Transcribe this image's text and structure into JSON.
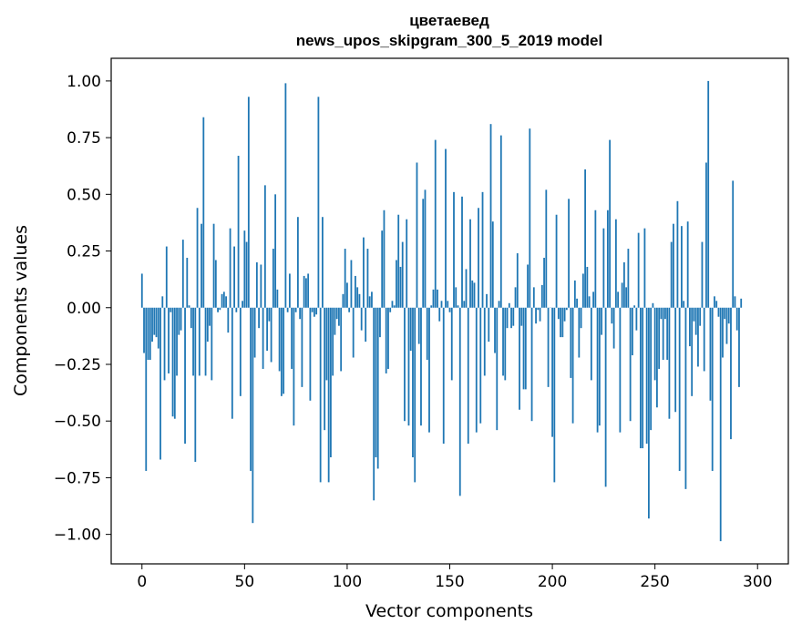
{
  "chart_data": {
    "type": "bar",
    "title": "цветаевед",
    "subtitle": "news_upos_skipgram_300_5_2019 model",
    "xlabel": "Vector components",
    "ylabel": "Components values",
    "xlim": [
      -15,
      315
    ],
    "ylim": [
      -1.13,
      1.1
    ],
    "xticks": [
      0,
      50,
      100,
      150,
      200,
      250,
      300
    ],
    "xtick_labels": [
      "0",
      "50",
      "100",
      "150",
      "200",
      "250",
      "300"
    ],
    "yticks": [
      1.0,
      0.75,
      0.5,
      0.25,
      0.0,
      -0.25,
      -0.5,
      -0.75,
      -1.0
    ],
    "ytick_labels": [
      "1.00",
      "0.75",
      "0.50",
      "0.25",
      "0.00",
      "−0.25",
      "−0.50",
      "−0.75",
      "−1.00"
    ],
    "grid": false,
    "legend": "none",
    "bar_color": "#1f77b4",
    "values": [
      0.15,
      -0.2,
      -0.72,
      -0.23,
      -0.23,
      -0.15,
      -0.12,
      -0.13,
      -0.18,
      -0.67,
      0.05,
      -0.32,
      0.27,
      -0.29,
      -0.02,
      -0.48,
      -0.49,
      -0.3,
      -0.12,
      -0.1,
      0.3,
      -0.6,
      0.22,
      0.01,
      -0.09,
      -0.3,
      -0.68,
      0.44,
      -0.3,
      0.37,
      0.84,
      -0.3,
      -0.15,
      -0.08,
      -0.32,
      0.37,
      0.21,
      -0.02,
      -0.01,
      0.06,
      0.07,
      0.05,
      -0.11,
      0.35,
      -0.49,
      0.27,
      -0.02,
      0.67,
      -0.39,
      0.03,
      0.34,
      0.29,
      0.93,
      -0.72,
      -0.95,
      -0.22,
      0.2,
      -0.09,
      0.19,
      -0.27,
      0.54,
      -0.19,
      -0.06,
      -0.24,
      0.26,
      0.5,
      0.08,
      -0.28,
      -0.39,
      -0.38,
      0.99,
      -0.02,
      0.15,
      -0.27,
      -0.52,
      -0.02,
      0.4,
      -0.05,
      -0.35,
      0.14,
      0.13,
      0.15,
      -0.41,
      -0.02,
      -0.04,
      -0.03,
      0.93,
      -0.77,
      0.4,
      -0.54,
      -0.32,
      -0.77,
      -0.66,
      -0.3,
      -0.12,
      -0.05,
      -0.08,
      -0.28,
      0.06,
      0.26,
      0.11,
      -0.02,
      0.21,
      -0.22,
      0.14,
      0.09,
      0.06,
      -0.1,
      0.31,
      -0.15,
      0.26,
      0.05,
      0.07,
      -0.85,
      -0.66,
      -0.71,
      -0.13,
      0.34,
      0.43,
      -0.29,
      -0.27,
      -0.02,
      0.03,
      0.01,
      0.21,
      0.41,
      0.18,
      0.29,
      -0.5,
      0.39,
      -0.52,
      -0.19,
      -0.66,
      -0.77,
      0.64,
      -0.16,
      -0.52,
      0.48,
      0.52,
      -0.23,
      -0.55,
      0.01,
      0.08,
      0.74,
      0.08,
      -0.06,
      0.03,
      -0.6,
      0.7,
      0.03,
      -0.02,
      -0.32,
      0.51,
      0.09,
      0.01,
      -0.83,
      0.49,
      0.03,
      0.17,
      -0.6,
      0.39,
      0.12,
      0.11,
      -0.55,
      0.44,
      -0.51,
      0.51,
      -0.3,
      0.06,
      -0.15,
      0.81,
      0.38,
      -0.2,
      -0.54,
      0.03,
      0.76,
      -0.3,
      -0.32,
      -0.09,
      0.02,
      -0.09,
      -0.08,
      0.09,
      0.24,
      -0.45,
      -0.08,
      -0.36,
      -0.36,
      0.19,
      0.79,
      -0.5,
      0.09,
      -0.07,
      -0.01,
      -0.06,
      0.1,
      0.22,
      0.52,
      -0.35,
      0.0,
      -0.57,
      -0.77,
      0.41,
      -0.05,
      -0.13,
      -0.13,
      -0.06,
      -0.01,
      0.48,
      -0.31,
      -0.51,
      0.12,
      0.04,
      -0.22,
      -0.09,
      0.15,
      0.61,
      0.18,
      0.05,
      -0.32,
      0.07,
      0.43,
      -0.55,
      -0.52,
      -0.12,
      0.35,
      -0.79,
      0.43,
      0.74,
      -0.07,
      -0.18,
      0.39,
      0.07,
      -0.55,
      0.11,
      0.2,
      0.09,
      0.26,
      -0.5,
      -0.21,
      0.01,
      -0.1,
      0.33,
      -0.62,
      -0.62,
      0.35,
      -0.6,
      -0.93,
      -0.54,
      0.02,
      -0.32,
      -0.44,
      -0.27,
      -0.05,
      -0.23,
      -0.05,
      -0.23,
      -0.49,
      0.29,
      0.37,
      -0.46,
      0.47,
      -0.72,
      0.36,
      0.03,
      -0.8,
      0.38,
      -0.17,
      -0.39,
      -0.06,
      -0.12,
      -0.26,
      -0.08,
      0.29,
      -0.28,
      0.64,
      1.0,
      -0.41,
      -0.72,
      0.05,
      0.03,
      -0.04,
      -1.03,
      -0.22,
      -0.05,
      -0.16,
      -0.07,
      -0.58,
      0.56,
      0.05,
      -0.1,
      -0.35,
      0.04
    ]
  }
}
